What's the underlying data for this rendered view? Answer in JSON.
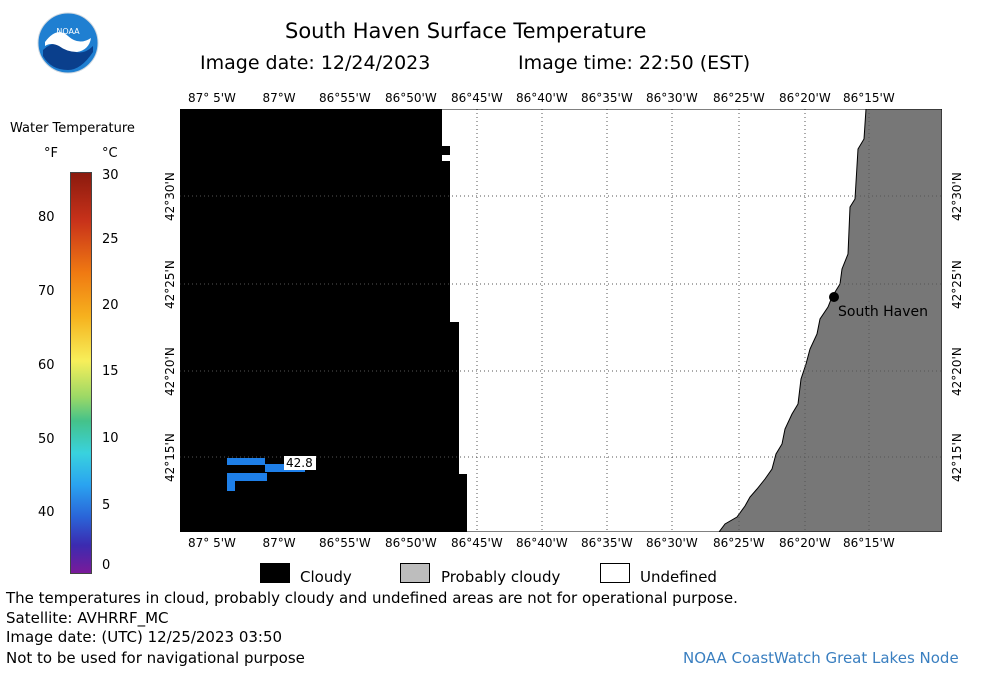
{
  "header": {
    "logo_text": "NOAA",
    "title": "South Haven Surface Temperature",
    "image_date": "Image date: 12/24/2023",
    "image_time": "Image time: 22:50 (EST)"
  },
  "colorbar": {
    "title": "Water Temperature",
    "unit_f": "°F",
    "unit_c": "°C",
    "f_ticks": [
      "80",
      "70",
      "60",
      "50",
      "40"
    ],
    "c_ticks": [
      "30",
      "25",
      "20",
      "15",
      "10",
      "5",
      "0"
    ]
  },
  "map": {
    "lon_labels": [
      "87° 5'W",
      "87°W",
      "86°55'W",
      "86°50'W",
      "86°45'W",
      "86°40'W",
      "86°35'W",
      "86°30'W",
      "86°25'W",
      "86°20'W",
      "86°15'W"
    ],
    "lat_labels": [
      "42°30'N",
      "42°25'N",
      "42°20'N",
      "42°15'N"
    ],
    "city_label": "South Haven",
    "sample_value": "42.8",
    "colors": {
      "cloudy": "#000000",
      "probably_cloudy": "#bdbdbd",
      "land": "#777777",
      "undefined": "#ffffff",
      "water_cold": "#1e7fe8",
      "accent_footer": "#3a7fc0"
    }
  },
  "legend": {
    "cloudy": "Cloudy",
    "probably_cloudy": "Probably cloudy",
    "undefined": "Undefined"
  },
  "footer": {
    "line1": "The temperatures in cloud, probably cloudy and undefined areas are not for operational purpose.",
    "line2": "Satellite: AVHRRF_MC",
    "line3": "Image date: (UTC) 12/25/2023  03:50",
    "line4": "Not to be used for navigational purpose",
    "credit": "NOAA CoastWatch Great Lakes Node"
  }
}
